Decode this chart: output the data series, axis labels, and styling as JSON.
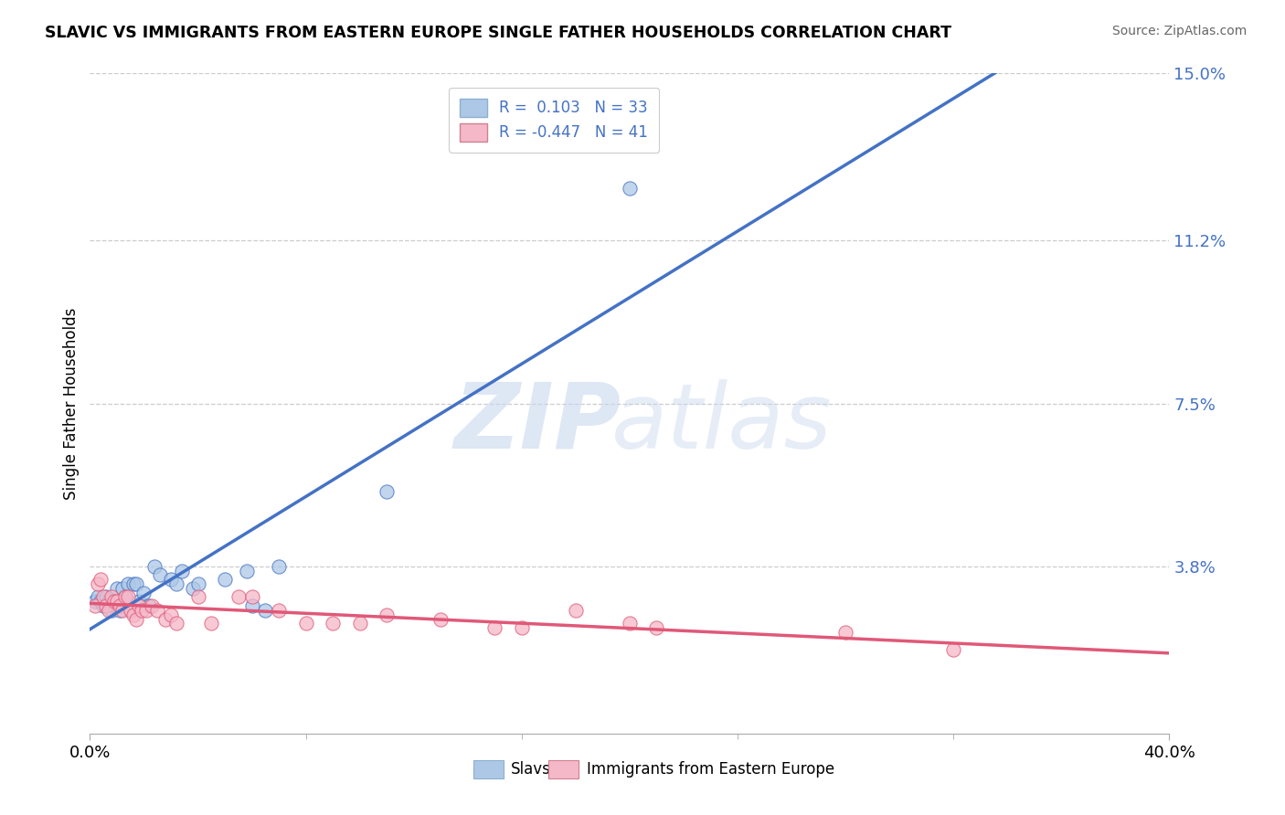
{
  "title": "SLAVIC VS IMMIGRANTS FROM EASTERN EUROPE SINGLE FATHER HOUSEHOLDS CORRELATION CHART",
  "source": "Source: ZipAtlas.com",
  "ylabel": "Single Father Households",
  "xmin": 0.0,
  "xmax": 0.4,
  "ymin": 0.0,
  "ymax": 0.15,
  "yticks": [
    0.038,
    0.075,
    0.112,
    0.15
  ],
  "ytick_labels": [
    "3.8%",
    "7.5%",
    "11.2%",
    "15.0%"
  ],
  "xtick_labels": [
    "0.0%",
    "40.0%"
  ],
  "xticks": [
    0.0,
    0.4
  ],
  "watermark_zip": "ZIP",
  "watermark_atlas": "atlas",
  "legend_r1": "R =  0.103   N = 33",
  "legend_r2": "R = -0.447   N = 41",
  "slavs_color": "#adc8e6",
  "immigrants_color": "#f5b8c8",
  "line_slavs_color": "#4472c4",
  "line_immigrants_color": "#e05878",
  "slavs_scatter": [
    [
      0.002,
      0.03
    ],
    [
      0.003,
      0.031
    ],
    [
      0.004,
      0.03
    ],
    [
      0.005,
      0.029
    ],
    [
      0.006,
      0.031
    ],
    [
      0.007,
      0.03
    ],
    [
      0.008,
      0.028
    ],
    [
      0.009,
      0.029
    ],
    [
      0.01,
      0.033
    ],
    [
      0.011,
      0.028
    ],
    [
      0.012,
      0.033
    ],
    [
      0.013,
      0.031
    ],
    [
      0.014,
      0.034
    ],
    [
      0.015,
      0.028
    ],
    [
      0.016,
      0.034
    ],
    [
      0.017,
      0.034
    ],
    [
      0.018,
      0.03
    ],
    [
      0.02,
      0.032
    ],
    [
      0.022,
      0.029
    ],
    [
      0.024,
      0.038
    ],
    [
      0.026,
      0.036
    ],
    [
      0.03,
      0.035
    ],
    [
      0.032,
      0.034
    ],
    [
      0.034,
      0.037
    ],
    [
      0.038,
      0.033
    ],
    [
      0.04,
      0.034
    ],
    [
      0.05,
      0.035
    ],
    [
      0.058,
      0.037
    ],
    [
      0.06,
      0.029
    ],
    [
      0.065,
      0.028
    ],
    [
      0.07,
      0.038
    ],
    [
      0.11,
      0.055
    ],
    [
      0.2,
      0.124
    ]
  ],
  "immigrants_scatter": [
    [
      0.002,
      0.029
    ],
    [
      0.003,
      0.034
    ],
    [
      0.004,
      0.035
    ],
    [
      0.005,
      0.031
    ],
    [
      0.006,
      0.029
    ],
    [
      0.007,
      0.028
    ],
    [
      0.008,
      0.031
    ],
    [
      0.009,
      0.03
    ],
    [
      0.01,
      0.03
    ],
    [
      0.011,
      0.029
    ],
    [
      0.012,
      0.028
    ],
    [
      0.013,
      0.031
    ],
    [
      0.014,
      0.031
    ],
    [
      0.015,
      0.028
    ],
    [
      0.016,
      0.027
    ],
    [
      0.017,
      0.026
    ],
    [
      0.018,
      0.029
    ],
    [
      0.019,
      0.028
    ],
    [
      0.021,
      0.028
    ],
    [
      0.023,
      0.029
    ],
    [
      0.025,
      0.028
    ],
    [
      0.028,
      0.026
    ],
    [
      0.03,
      0.027
    ],
    [
      0.032,
      0.025
    ],
    [
      0.04,
      0.031
    ],
    [
      0.045,
      0.025
    ],
    [
      0.055,
      0.031
    ],
    [
      0.06,
      0.031
    ],
    [
      0.07,
      0.028
    ],
    [
      0.08,
      0.025
    ],
    [
      0.09,
      0.025
    ],
    [
      0.1,
      0.025
    ],
    [
      0.11,
      0.027
    ],
    [
      0.13,
      0.026
    ],
    [
      0.15,
      0.024
    ],
    [
      0.16,
      0.024
    ],
    [
      0.18,
      0.028
    ],
    [
      0.2,
      0.025
    ],
    [
      0.21,
      0.024
    ],
    [
      0.28,
      0.023
    ],
    [
      0.32,
      0.019
    ]
  ]
}
